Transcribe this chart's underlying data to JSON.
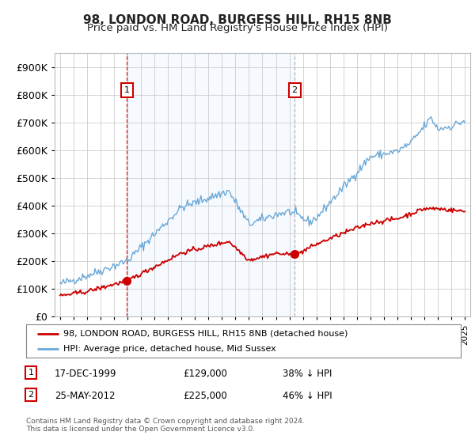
{
  "title": "98, LONDON ROAD, BURGESS HILL, RH15 8NB",
  "subtitle": "Price paid vs. HM Land Registry's House Price Index (HPI)",
  "legend_line1": "98, LONDON ROAD, BURGESS HILL, RH15 8NB (detached house)",
  "legend_line2": "HPI: Average price, detached house, Mid Sussex",
  "annotation1_label": "1",
  "annotation1_date": "17-DEC-1999",
  "annotation1_price": "£129,000",
  "annotation1_pct": "38% ↓ HPI",
  "annotation1_year": 1999.96,
  "annotation1_value": 129000,
  "annotation2_label": "2",
  "annotation2_date": "25-MAY-2012",
  "annotation2_price": "£225,000",
  "annotation2_pct": "46% ↓ HPI",
  "annotation2_year": 2012.38,
  "annotation2_value": 225000,
  "hpi_color": "#6aa8d8",
  "price_color": "#cc0000",
  "vline1_color": "#cc0000",
  "vline2_color": "#aaaaaa",
  "shade_color": "#ddeeff",
  "annotation_color": "#cc0000",
  "background_color": "#ffffff",
  "grid_color": "#cccccc",
  "footer": "Contains HM Land Registry data © Crown copyright and database right 2024.\nThis data is licensed under the Open Government Licence v3.0.",
  "ylim": [
    0,
    950000
  ],
  "yticks": [
    0,
    100000,
    200000,
    300000,
    400000,
    500000,
    600000,
    700000,
    800000,
    900000
  ],
  "title_fontsize": 11,
  "subtitle_fontsize": 9.5
}
